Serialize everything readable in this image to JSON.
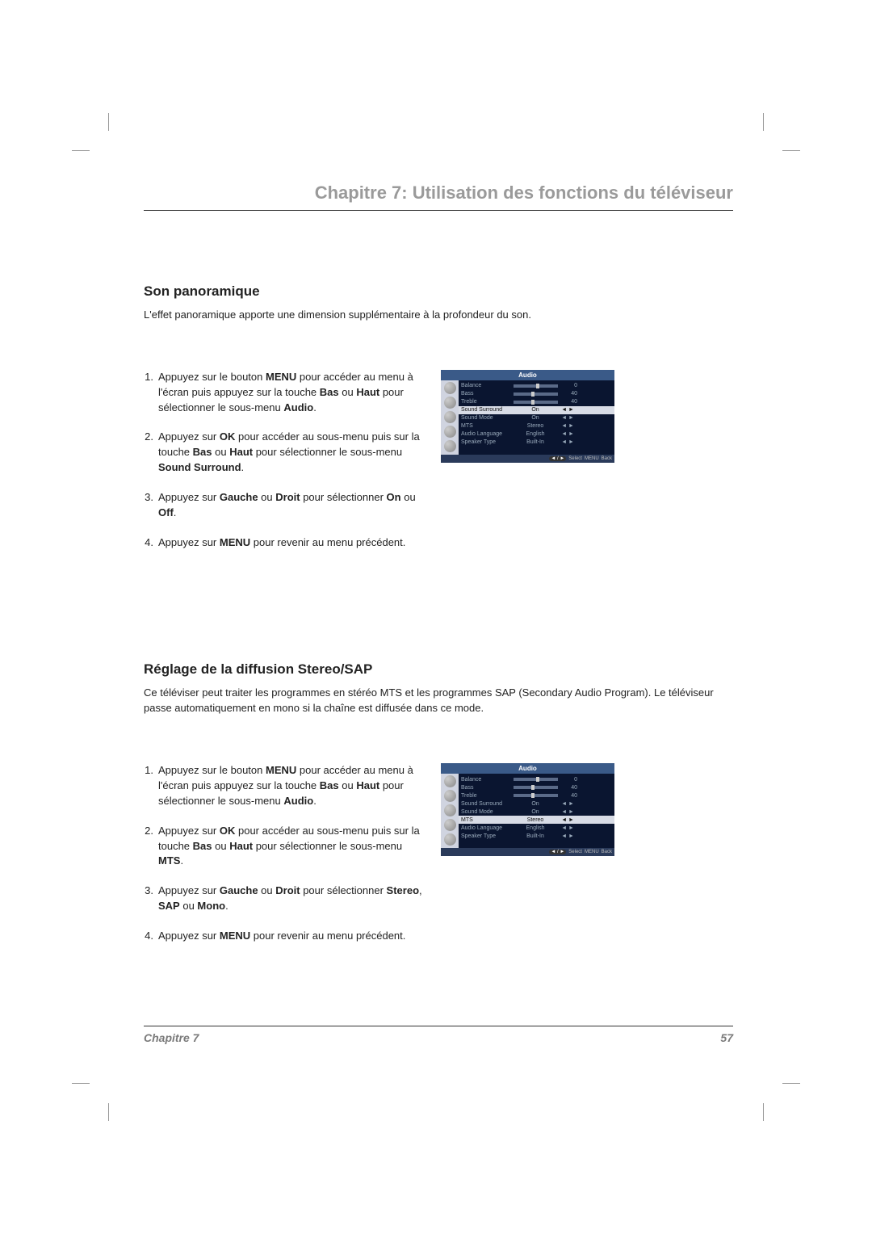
{
  "chapter_header": "Chapitre 7: Utilisation des fonctions du téléviseur",
  "section1": {
    "title": "Son panoramique",
    "intro": "L'effet panoramique apporte une dimension supplémentaire à la profondeur du son.",
    "steps": {
      "s1_a": "Appuyez sur le bouton ",
      "s1_b": "MENU",
      "s1_c": " pour accéder au menu à l'écran puis appuyez sur la touche ",
      "s1_d": "Bas",
      "s1_e": " ou ",
      "s1_f": "Haut",
      "s1_g": " pour sélectionner le sous-menu ",
      "s1_h": "Audio",
      "s1_i": ".",
      "s2_a": "Appuyez sur ",
      "s2_b": "OK",
      "s2_c": " pour accéder au sous-menu puis sur la touche ",
      "s2_d": "Bas",
      "s2_e": " ou ",
      "s2_f": "Haut",
      "s2_g": " pour sélectionner le sous-menu ",
      "s2_h": "Sound Surround",
      "s2_i": ".",
      "s3_a": "Appuyez sur ",
      "s3_b": "Gauche",
      "s3_c": " ou ",
      "s3_d": "Droit",
      "s3_e": " pour sélectionner ",
      "s3_f": "On",
      "s3_g": " ou ",
      "s3_h": "Off",
      "s3_i": ".",
      "s4_a": "Appuyez sur ",
      "s4_b": "MENU",
      "s4_c": " pour revenir au menu précédent."
    }
  },
  "section2": {
    "title": "Réglage de la diffusion Stereo/SAP",
    "intro": "Ce téléviser peut traiter les programmes en stéréo MTS et les programmes SAP (Secondary Audio Program). Le téléviseur passe automatiquement en mono si la chaîne est diffusée dans ce mode.",
    "steps": {
      "s1_a": "Appuyez sur le bouton ",
      "s1_b": "MENU",
      "s1_c": " pour accéder au menu à l'écran puis appuyez sur la touche ",
      "s1_d": "Bas",
      "s1_e": " ou ",
      "s1_f": "Haut",
      "s1_g": " pour sélectionner le sous-menu ",
      "s1_h": "Audio",
      "s1_i": ".",
      "s2_a": "Appuyez sur ",
      "s2_b": "OK",
      "s2_c": " pour accéder au sous-menu puis sur la touche ",
      "s2_d": "Bas",
      "s2_e": " ou ",
      "s2_f": "Haut",
      "s2_g": " pour sélectionner le sous-menu ",
      "s2_h": "MTS",
      "s2_i": ".",
      "s3_a": "Appuyez sur ",
      "s3_b": "Gauche",
      "s3_c": " ou ",
      "s3_d": "Droit",
      "s3_e": " pour sélectionner ",
      "s3_f": "Stereo",
      "s3_g": ", ",
      "s3_h": "SAP",
      "s3_i": " ou ",
      "s3_j": "Mono",
      "s3_k": ".",
      "s4_a": "Appuyez sur ",
      "s4_b": "MENU",
      "s4_c": " pour revenir au menu précédent."
    }
  },
  "menu1": {
    "title": "Audio",
    "rows": [
      {
        "label": "Balance",
        "type": "slider",
        "value": "0",
        "thumb_pct": 50
      },
      {
        "label": "Bass",
        "type": "slider",
        "value": "40",
        "thumb_pct": 40
      },
      {
        "label": "Treble",
        "type": "slider",
        "value": "40",
        "thumb_pct": 40
      },
      {
        "label": "Sound Surround",
        "type": "value",
        "value": "On",
        "highlighted": true,
        "arrows": "◄ ►"
      },
      {
        "label": "Sound Mode",
        "type": "value",
        "value": "On",
        "arrows": "◄ ►"
      },
      {
        "label": "MTS",
        "type": "value",
        "value": "Stereo",
        "arrows": "◄ ►"
      },
      {
        "label": "Audio Language",
        "type": "value",
        "value": "English",
        "arrows": "◄ ►"
      },
      {
        "label": "Speaker Type",
        "type": "value",
        "value": "Built-In",
        "arrows": "◄ ►"
      }
    ],
    "footer": {
      "pill": "◄ / ►",
      "select": "Select",
      "menu": "MENU",
      "back": "Back"
    }
  },
  "menu2": {
    "title": "Audio",
    "rows": [
      {
        "label": "Balance",
        "type": "slider",
        "value": "0",
        "thumb_pct": 50
      },
      {
        "label": "Bass",
        "type": "slider",
        "value": "40",
        "thumb_pct": 40
      },
      {
        "label": "Treble",
        "type": "slider",
        "value": "40",
        "thumb_pct": 40
      },
      {
        "label": "Sound Surround",
        "type": "value",
        "value": "On",
        "arrows": "◄ ►"
      },
      {
        "label": "Sound Mode",
        "type": "value",
        "value": "On",
        "arrows": "◄ ►"
      },
      {
        "label": "MTS",
        "type": "value",
        "value": "Stereo",
        "highlighted": true,
        "arrows": "◄ ►"
      },
      {
        "label": "Audio Language",
        "type": "value",
        "value": "English",
        "arrows": "◄ ►"
      },
      {
        "label": "Speaker Type",
        "type": "value",
        "value": "Built-In",
        "arrows": "◄ ►"
      }
    ],
    "footer": {
      "pill": "◄ / ►",
      "select": "Select",
      "menu": "MENU",
      "back": "Back"
    }
  },
  "footer": {
    "chapter": "Chapitre 7",
    "page": "57"
  }
}
